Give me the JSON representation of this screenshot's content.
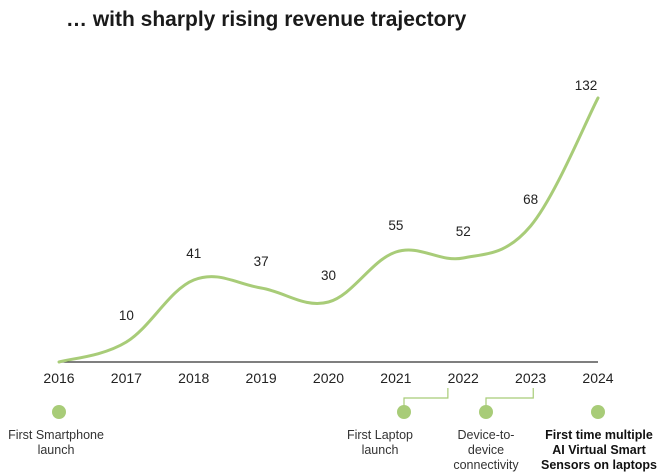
{
  "colors": {
    "line": "#a8cc78",
    "axis": "#333333",
    "text": "#222222"
  },
  "chart_data": {
    "type": "line",
    "title": "… with sharply rising revenue trajectory",
    "x": [
      "2016",
      "2017",
      "2018",
      "2019",
      "2020",
      "2021",
      "2022",
      "2023",
      "2024"
    ],
    "series": [
      {
        "name": "Revenue",
        "values": [
          null,
          10,
          41,
          37,
          30,
          55,
          52,
          68,
          132
        ]
      }
    ],
    "data_labels": [
      "",
      "10",
      "41",
      "37",
      "30",
      "55",
      "52",
      "68",
      "132"
    ],
    "start_value": 0,
    "ylim": [
      0,
      132
    ],
    "xlabel": "",
    "ylabel": "",
    "grid": false,
    "annotations": [
      {
        "year": "2016",
        "text": "First Smartphone launch",
        "bold": false
      },
      {
        "year": "2021",
        "text": "First Laptop launch",
        "bold": false
      },
      {
        "year": "2022",
        "text": "Device-to-device connectivity",
        "bold": false
      },
      {
        "year": "2024",
        "text": "First time multiple AI Virtual Smart Sensors on laptops",
        "bold": true
      }
    ]
  }
}
